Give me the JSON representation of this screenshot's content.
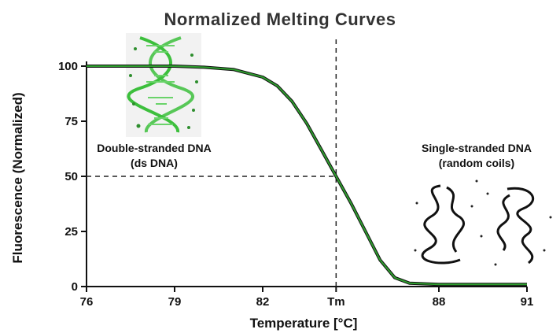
{
  "chart_data": {
    "type": "line",
    "title": "Normalized Melting Curves",
    "xlabel": "Temperature  [°C]",
    "ylabel": "Fluorescence (Normalized)",
    "xlim": [
      76,
      91
    ],
    "ylim": [
      0,
      100
    ],
    "x_ticks": [
      {
        "value": 76,
        "label": "76"
      },
      {
        "value": 79,
        "label": "79"
      },
      {
        "value": 82,
        "label": "82"
      },
      {
        "value": 84.5,
        "label": "Tm"
      },
      {
        "value": 88,
        "label": "88"
      },
      {
        "value": 91,
        "label": "91"
      }
    ],
    "y_ticks": [
      {
        "value": 0,
        "label": "0"
      },
      {
        "value": 25,
        "label": "25"
      },
      {
        "value": 50,
        "label": "50"
      },
      {
        "value": 75,
        "label": "75"
      },
      {
        "value": 100,
        "label": "100"
      }
    ],
    "tm": 84.5,
    "series": [
      {
        "color": "#2e9e2e",
        "x": [
          76,
          79,
          80,
          81,
          82,
          82.5,
          83,
          83.5,
          84,
          84.5,
          85,
          85.5,
          86,
          86.5,
          87,
          88,
          89,
          90,
          91
        ],
        "y": [
          100,
          100,
          99.5,
          98.5,
          95,
          91,
          84,
          74,
          62,
          50,
          38,
          25,
          12,
          4,
          1.5,
          1,
          1,
          1,
          1
        ]
      }
    ],
    "annotations": {
      "ds_line1": "Double-stranded DNA",
      "ds_line2": "(ds DNA)",
      "ss_line1": "Single-stranded DNA",
      "ss_line2": "(random coils)"
    },
    "grid": false,
    "legend": "none"
  }
}
